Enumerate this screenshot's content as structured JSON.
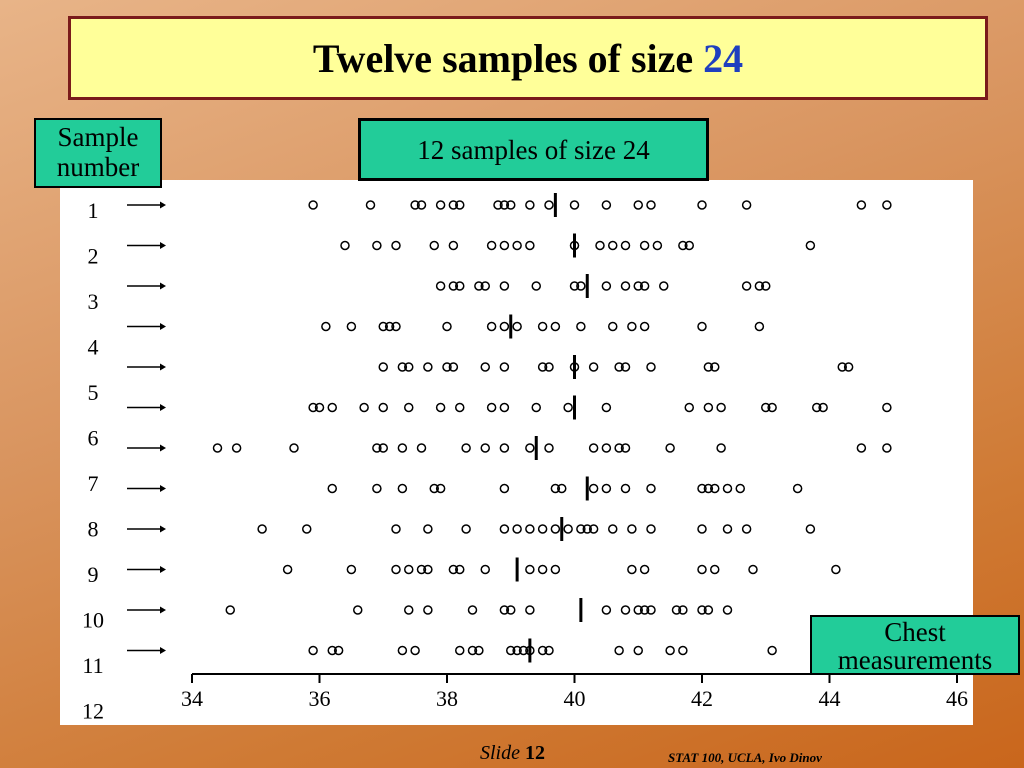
{
  "slide": {
    "title_main": "Twelve samples of size",
    "title_accent": "24",
    "sample_number_label": "Sample number",
    "legend_label": "12 samples of size 24",
    "axis_caption": "Chest measurements",
    "footer_slide_label": "Slide",
    "footer_slide_number": "12",
    "footer_credit": "STAT 100, UCLA, Ivo Dinov"
  },
  "colors": {
    "title_fill": "#ffff99",
    "title_border": "#7a1b1b",
    "title_accent": "#1f3fbf",
    "label_box_fill": "#22cc99"
  },
  "chart_data": {
    "type": "scatter",
    "title": "12 samples of size 24",
    "xlabel": "Chest measurements",
    "ylabel": "Sample number",
    "xlim": [
      34,
      46
    ],
    "x_ticks": [
      "34",
      "36",
      "38",
      "40",
      "42",
      "44",
      "46"
    ],
    "row_labels": [
      "1",
      "2",
      "3",
      "4",
      "5",
      "6",
      "7",
      "8",
      "9",
      "10",
      "11",
      "12"
    ],
    "marker": "open circle",
    "mean_marker": "vertical bar",
    "series": [
      {
        "values": [
          35.9,
          36.8,
          37.5,
          37.6,
          37.9,
          38.1,
          38.2,
          38.8,
          38.9,
          39.0,
          39.3,
          39.6,
          40.0,
          40.5,
          41.0,
          41.2,
          42.0,
          42.7,
          44.5,
          44.9
        ],
        "mean": 39.7
      },
      {
        "values": [
          36.4,
          36.9,
          37.2,
          37.8,
          38.1,
          38.7,
          38.9,
          39.1,
          39.3,
          40.0,
          40.4,
          40.6,
          40.8,
          41.1,
          41.3,
          41.7,
          41.8,
          43.7
        ],
        "mean": 40.0
      },
      {
        "values": [
          37.9,
          38.1,
          38.2,
          38.5,
          38.6,
          38.9,
          39.4,
          40.0,
          40.1,
          40.5,
          40.8,
          41.0,
          41.1,
          41.4,
          42.7,
          42.9,
          43.0
        ],
        "mean": 40.2
      },
      {
        "values": [
          36.1,
          36.5,
          37.0,
          37.1,
          37.2,
          38.0,
          38.7,
          38.9,
          39.1,
          39.5,
          39.7,
          40.1,
          40.6,
          40.9,
          41.1,
          42.0,
          42.9
        ],
        "mean": 39.0
      },
      {
        "values": [
          37.0,
          37.3,
          37.4,
          37.7,
          38.0,
          38.1,
          38.6,
          38.9,
          39.5,
          39.6,
          40.0,
          40.3,
          40.7,
          40.8,
          41.2,
          42.1,
          42.2,
          44.2,
          44.3
        ],
        "mean": 40.0
      },
      {
        "values": [
          35.9,
          36.0,
          36.2,
          36.7,
          37.0,
          37.4,
          37.9,
          38.2,
          38.7,
          38.9,
          39.4,
          39.9,
          40.5,
          41.8,
          42.1,
          42.3,
          43.0,
          43.1,
          43.8,
          43.9,
          44.9
        ],
        "mean": 40.0
      },
      {
        "values": [
          34.4,
          34.7,
          35.6,
          36.9,
          37.0,
          37.3,
          37.6,
          38.3,
          38.6,
          38.9,
          39.3,
          39.6,
          40.3,
          40.5,
          40.7,
          40.8,
          41.5,
          42.3,
          44.5,
          44.9
        ],
        "mean": 39.4
      },
      {
        "values": [
          36.2,
          36.9,
          37.3,
          37.8,
          37.9,
          38.9,
          39.7,
          39.8,
          40.3,
          40.5,
          40.8,
          41.2,
          42.0,
          42.1,
          42.2,
          42.4,
          42.6,
          43.5
        ],
        "mean": 40.2
      },
      {
        "values": [
          35.1,
          35.8,
          37.2,
          37.7,
          38.3,
          38.9,
          39.1,
          39.3,
          39.5,
          39.7,
          39.9,
          40.1,
          40.2,
          40.3,
          40.6,
          40.9,
          41.2,
          42.0,
          42.4,
          42.7,
          43.7
        ],
        "mean": 39.8
      },
      {
        "values": [
          35.5,
          36.5,
          37.2,
          37.4,
          37.6,
          37.7,
          38.1,
          38.2,
          38.6,
          39.3,
          39.5,
          39.7,
          40.9,
          41.1,
          42.0,
          42.2,
          42.8,
          44.1
        ],
        "mean": 39.1
      },
      {
        "values": [
          34.6,
          36.6,
          37.4,
          37.7,
          38.4,
          38.9,
          39.0,
          39.3,
          40.5,
          40.8,
          41.0,
          41.1,
          41.2,
          41.6,
          41.7,
          42.0,
          42.1,
          42.4
        ],
        "mean": 40.1
      },
      {
        "values": [
          35.9,
          36.2,
          36.3,
          37.3,
          37.5,
          38.2,
          38.4,
          38.5,
          39.0,
          39.1,
          39.2,
          39.3,
          39.5,
          39.6,
          40.7,
          41.0,
          41.5,
          41.7,
          43.1
        ],
        "mean": 39.3
      }
    ]
  }
}
